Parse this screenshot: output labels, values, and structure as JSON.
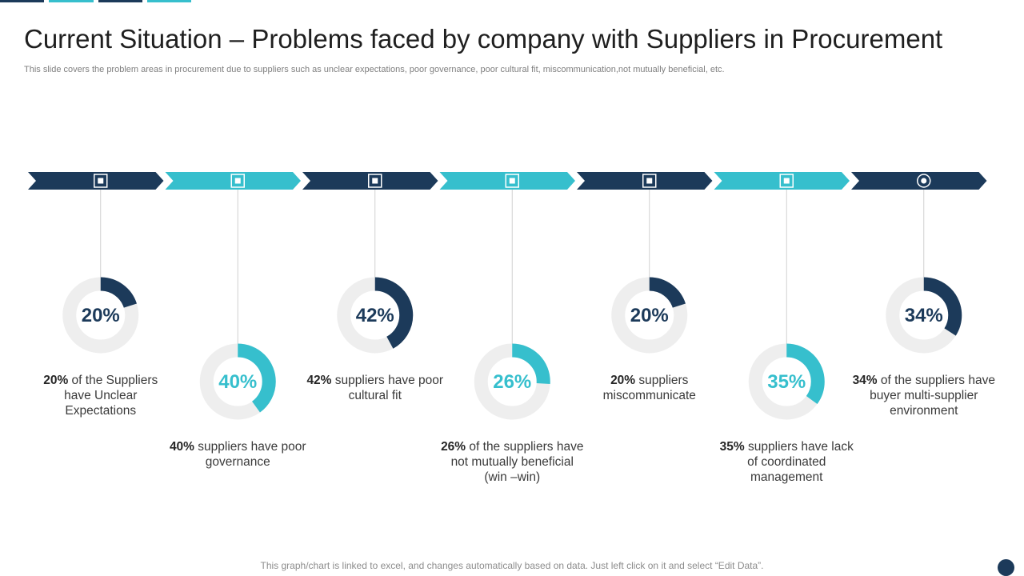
{
  "title": "Current Situation – Problems faced by company with Suppliers in Procurement",
  "subtitle": "This slide covers the problem areas in procurement due to suppliers such as unclear expectations, poor governance, poor cultural fit, miscommunication,not mutually beneficial, etc.",
  "footer": "This graph/chart is linked to excel, and changes automatically based on data. Just left click on it and select “Edit Data”.",
  "colors": {
    "dark": "#1c3a5a",
    "teal": "#36bfcd",
    "track": "#eeeeee",
    "connector": "#d0d0d0"
  },
  "chart_data": {
    "type": "donut",
    "items": [
      {
        "value": 20,
        "label": "20%",
        "bold": "20%",
        "text": " of the Suppliers have Unclear Expectations",
        "color": "dark",
        "marker": "square"
      },
      {
        "value": 40,
        "label": "40%",
        "bold": "40%",
        "text": " suppliers have poor governance",
        "color": "teal",
        "marker": "square"
      },
      {
        "value": 42,
        "label": "42%",
        "bold": "42%",
        "text": " suppliers have poor cultural  fit",
        "color": "dark",
        "marker": "square"
      },
      {
        "value": 26,
        "label": "26%",
        "bold": "26%",
        "text": " of the suppliers have not mutually beneficial (win –win)",
        "color": "teal",
        "marker": "square"
      },
      {
        "value": 20,
        "label": "20%",
        "bold": "20%",
        "text": " suppliers miscommunicate",
        "color": "dark",
        "marker": "square"
      },
      {
        "value": 35,
        "label": "35%",
        "bold": "35%",
        "text": " suppliers have lack of coordinated management",
        "color": "teal",
        "marker": "square"
      },
      {
        "value": 34,
        "label": "34%",
        "bold": "34%",
        "text": " of the suppliers have buyer multi-supplier environment",
        "color": "dark",
        "marker": "circle"
      }
    ]
  }
}
